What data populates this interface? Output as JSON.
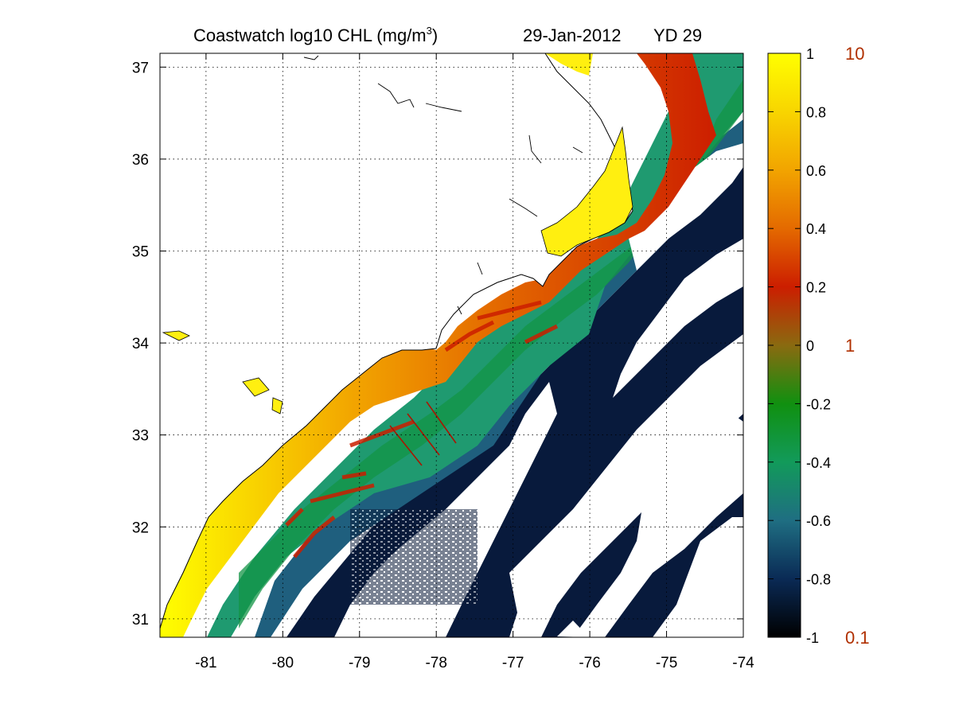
{
  "title": {
    "prefix": "Coastwatch  log10  CHL (mg/m",
    "superscript": "3",
    "suffix": ")",
    "date": "29-Jan-2012",
    "yearday": "YD 29"
  },
  "map": {
    "lon_range": [
      -81.6,
      -74.0
    ],
    "lat_range": [
      30.8,
      37.15
    ],
    "lon_ticks": [
      "-81",
      "-80",
      "-79",
      "-78",
      "-77",
      "-76",
      "-75",
      "-74"
    ],
    "lat_ticks": [
      "37",
      "36",
      "35",
      "34",
      "33",
      "32",
      "31"
    ],
    "grid": "dotted",
    "land_color": "#ffffff",
    "cloud_color": "#ffffff",
    "coastline_color": "#000000"
  },
  "colorbar": {
    "range": [
      -1,
      1
    ],
    "ticks": [
      "1",
      "0.8",
      "0.6",
      "0.4",
      "0.2",
      "0",
      "-0.2",
      "-0.4",
      "-0.6",
      "-0.8",
      "-1"
    ],
    "linear_labels": [
      "10",
      "1",
      "0.1"
    ],
    "linear_label_color": "#b03000",
    "stops": [
      "#000000",
      "#0a2a55",
      "#1f6e82",
      "#129a5a",
      "#109010",
      "#8a6a10",
      "#cc1e00",
      "#e46a00",
      "#f2a400",
      "#f8d500",
      "#ffff00"
    ]
  },
  "chart_data": {
    "type": "heatmap",
    "title": "Coastwatch  log10  CHL (mg/m3)   29-Jan-2012   YD 29",
    "x": [
      "-81",
      "-80",
      "-79",
      "-78",
      "-77",
      "-76",
      "-75",
      "-74"
    ],
    "y": [
      "31",
      "32",
      "33",
      "34",
      "35",
      "36",
      "37"
    ],
    "xlim": [
      -81.6,
      -74.0
    ],
    "ylim": [
      30.8,
      37.15
    ],
    "value_range": [
      -1,
      1
    ],
    "colorbar_ticks": [
      -1,
      -0.8,
      -0.6,
      -0.4,
      -0.2,
      0,
      0.2,
      0.4,
      0.6,
      0.8,
      1
    ],
    "colorbar_linear_labels": [
      10,
      1,
      0.1
    ],
    "grid": true,
    "legend": "right colorbar"
  }
}
